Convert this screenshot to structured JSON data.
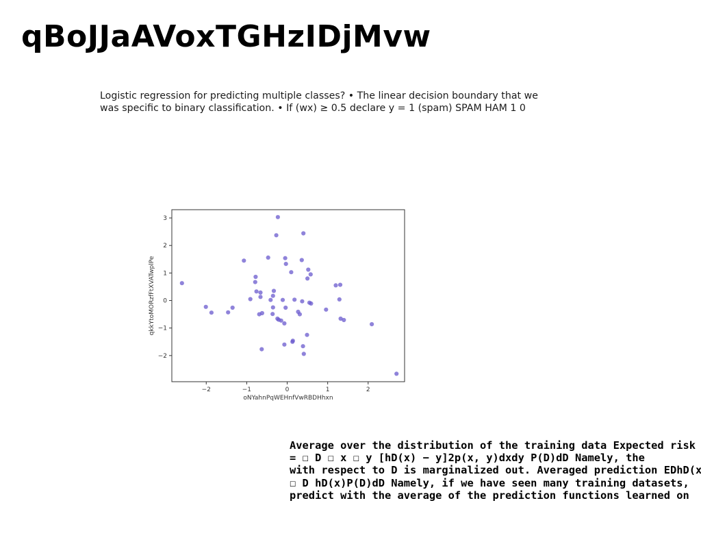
{
  "title": "qBoJJaAVoxTGHzIDjMvw",
  "intro_lines": [
    "Logistic regression for predicting multiple classes? • The linear decision boundary that we",
    "was specific to binary classification. • If (wx) ≥ 0.5 declare y = 1 (spam) SPAM HAM 1 0"
  ],
  "risk_lines": [
    "Average over the distribution of the training data Expected risk ED",
    "= ☐ D ☐ x ☐ y [hD(x) − y]2p(x, y)dxdy P(D)dD Namely, the",
    "with respect to D is marginalized out. Averaged prediction EDhD(x)",
    "☐ D hD(x)P(D)dD Namely, if we have seen many training datasets,",
    "predict with the average of the prediction functions learned on"
  ],
  "chart_data": {
    "type": "scatter",
    "xlabel": "oNYahnPqWEHnfVwRBDHhxn",
    "ylabel": "qkkYtoMORzfFtXVATwplPe",
    "xlim": [
      -2.85,
      2.9
    ],
    "ylim": [
      -2.95,
      3.3
    ],
    "xticks": [
      -2,
      -1,
      0,
      1,
      2
    ],
    "yticks": [
      -2,
      -1,
      0,
      1,
      2,
      3
    ],
    "xtick_labels": [
      "−2",
      "−1",
      "0",
      "1",
      "2"
    ],
    "ytick_labels": [
      "−2",
      "−1",
      "0",
      "1",
      "2",
      "3"
    ],
    "grid": false,
    "point_color": "#6a5acd",
    "points": [
      [
        -0.23,
        3.03
      ],
      [
        -0.27,
        2.37
      ],
      [
        0.4,
        2.44
      ],
      [
        -1.07,
        1.45
      ],
      [
        -0.47,
        1.56
      ],
      [
        -0.05,
        1.54
      ],
      [
        -0.03,
        1.33
      ],
      [
        0.36,
        1.47
      ],
      [
        0.52,
        1.12
      ],
      [
        0.58,
        0.95
      ],
      [
        0.5,
        0.8
      ],
      [
        0.1,
        1.03
      ],
      [
        -0.78,
        0.86
      ],
      [
        -0.79,
        0.67
      ],
      [
        -2.6,
        0.63
      ],
      [
        1.2,
        0.55
      ],
      [
        1.31,
        0.57
      ],
      [
        -0.76,
        0.33
      ],
      [
        -0.66,
        0.29
      ],
      [
        -0.33,
        0.35
      ],
      [
        -0.35,
        0.17
      ],
      [
        -0.66,
        0.13
      ],
      [
        -0.91,
        0.05
      ],
      [
        -0.41,
        0.02
      ],
      [
        -0.11,
        0.02
      ],
      [
        0.18,
        0.03
      ],
      [
        0.37,
        -0.03
      ],
      [
        0.55,
        -0.08
      ],
      [
        0.59,
        -0.11
      ],
      [
        1.29,
        0.04
      ],
      [
        -2.01,
        -0.23
      ],
      [
        -1.87,
        -0.44
      ],
      [
        -1.46,
        -0.43
      ],
      [
        -1.35,
        -0.26
      ],
      [
        -0.35,
        -0.25
      ],
      [
        -0.04,
        -0.26
      ],
      [
        0.27,
        -0.41
      ],
      [
        0.31,
        -0.5
      ],
      [
        0.96,
        -0.33
      ],
      [
        1.32,
        -0.66
      ],
      [
        1.4,
        -0.71
      ],
      [
        2.09,
        -0.86
      ],
      [
        -0.62,
        -0.46
      ],
      [
        -0.69,
        -0.5
      ],
      [
        -0.36,
        -0.49
      ],
      [
        -0.24,
        -0.66
      ],
      [
        -0.21,
        -0.7
      ],
      [
        -0.15,
        -0.73
      ],
      [
        -0.07,
        -0.83
      ],
      [
        0.14,
        -1.46
      ],
      [
        0.13,
        -1.5
      ],
      [
        -0.07,
        -1.6
      ],
      [
        0.49,
        -1.25
      ],
      [
        -0.63,
        -1.77
      ],
      [
        0.39,
        -1.66
      ],
      [
        0.41,
        -1.94
      ],
      [
        2.7,
        -2.66
      ]
    ]
  }
}
